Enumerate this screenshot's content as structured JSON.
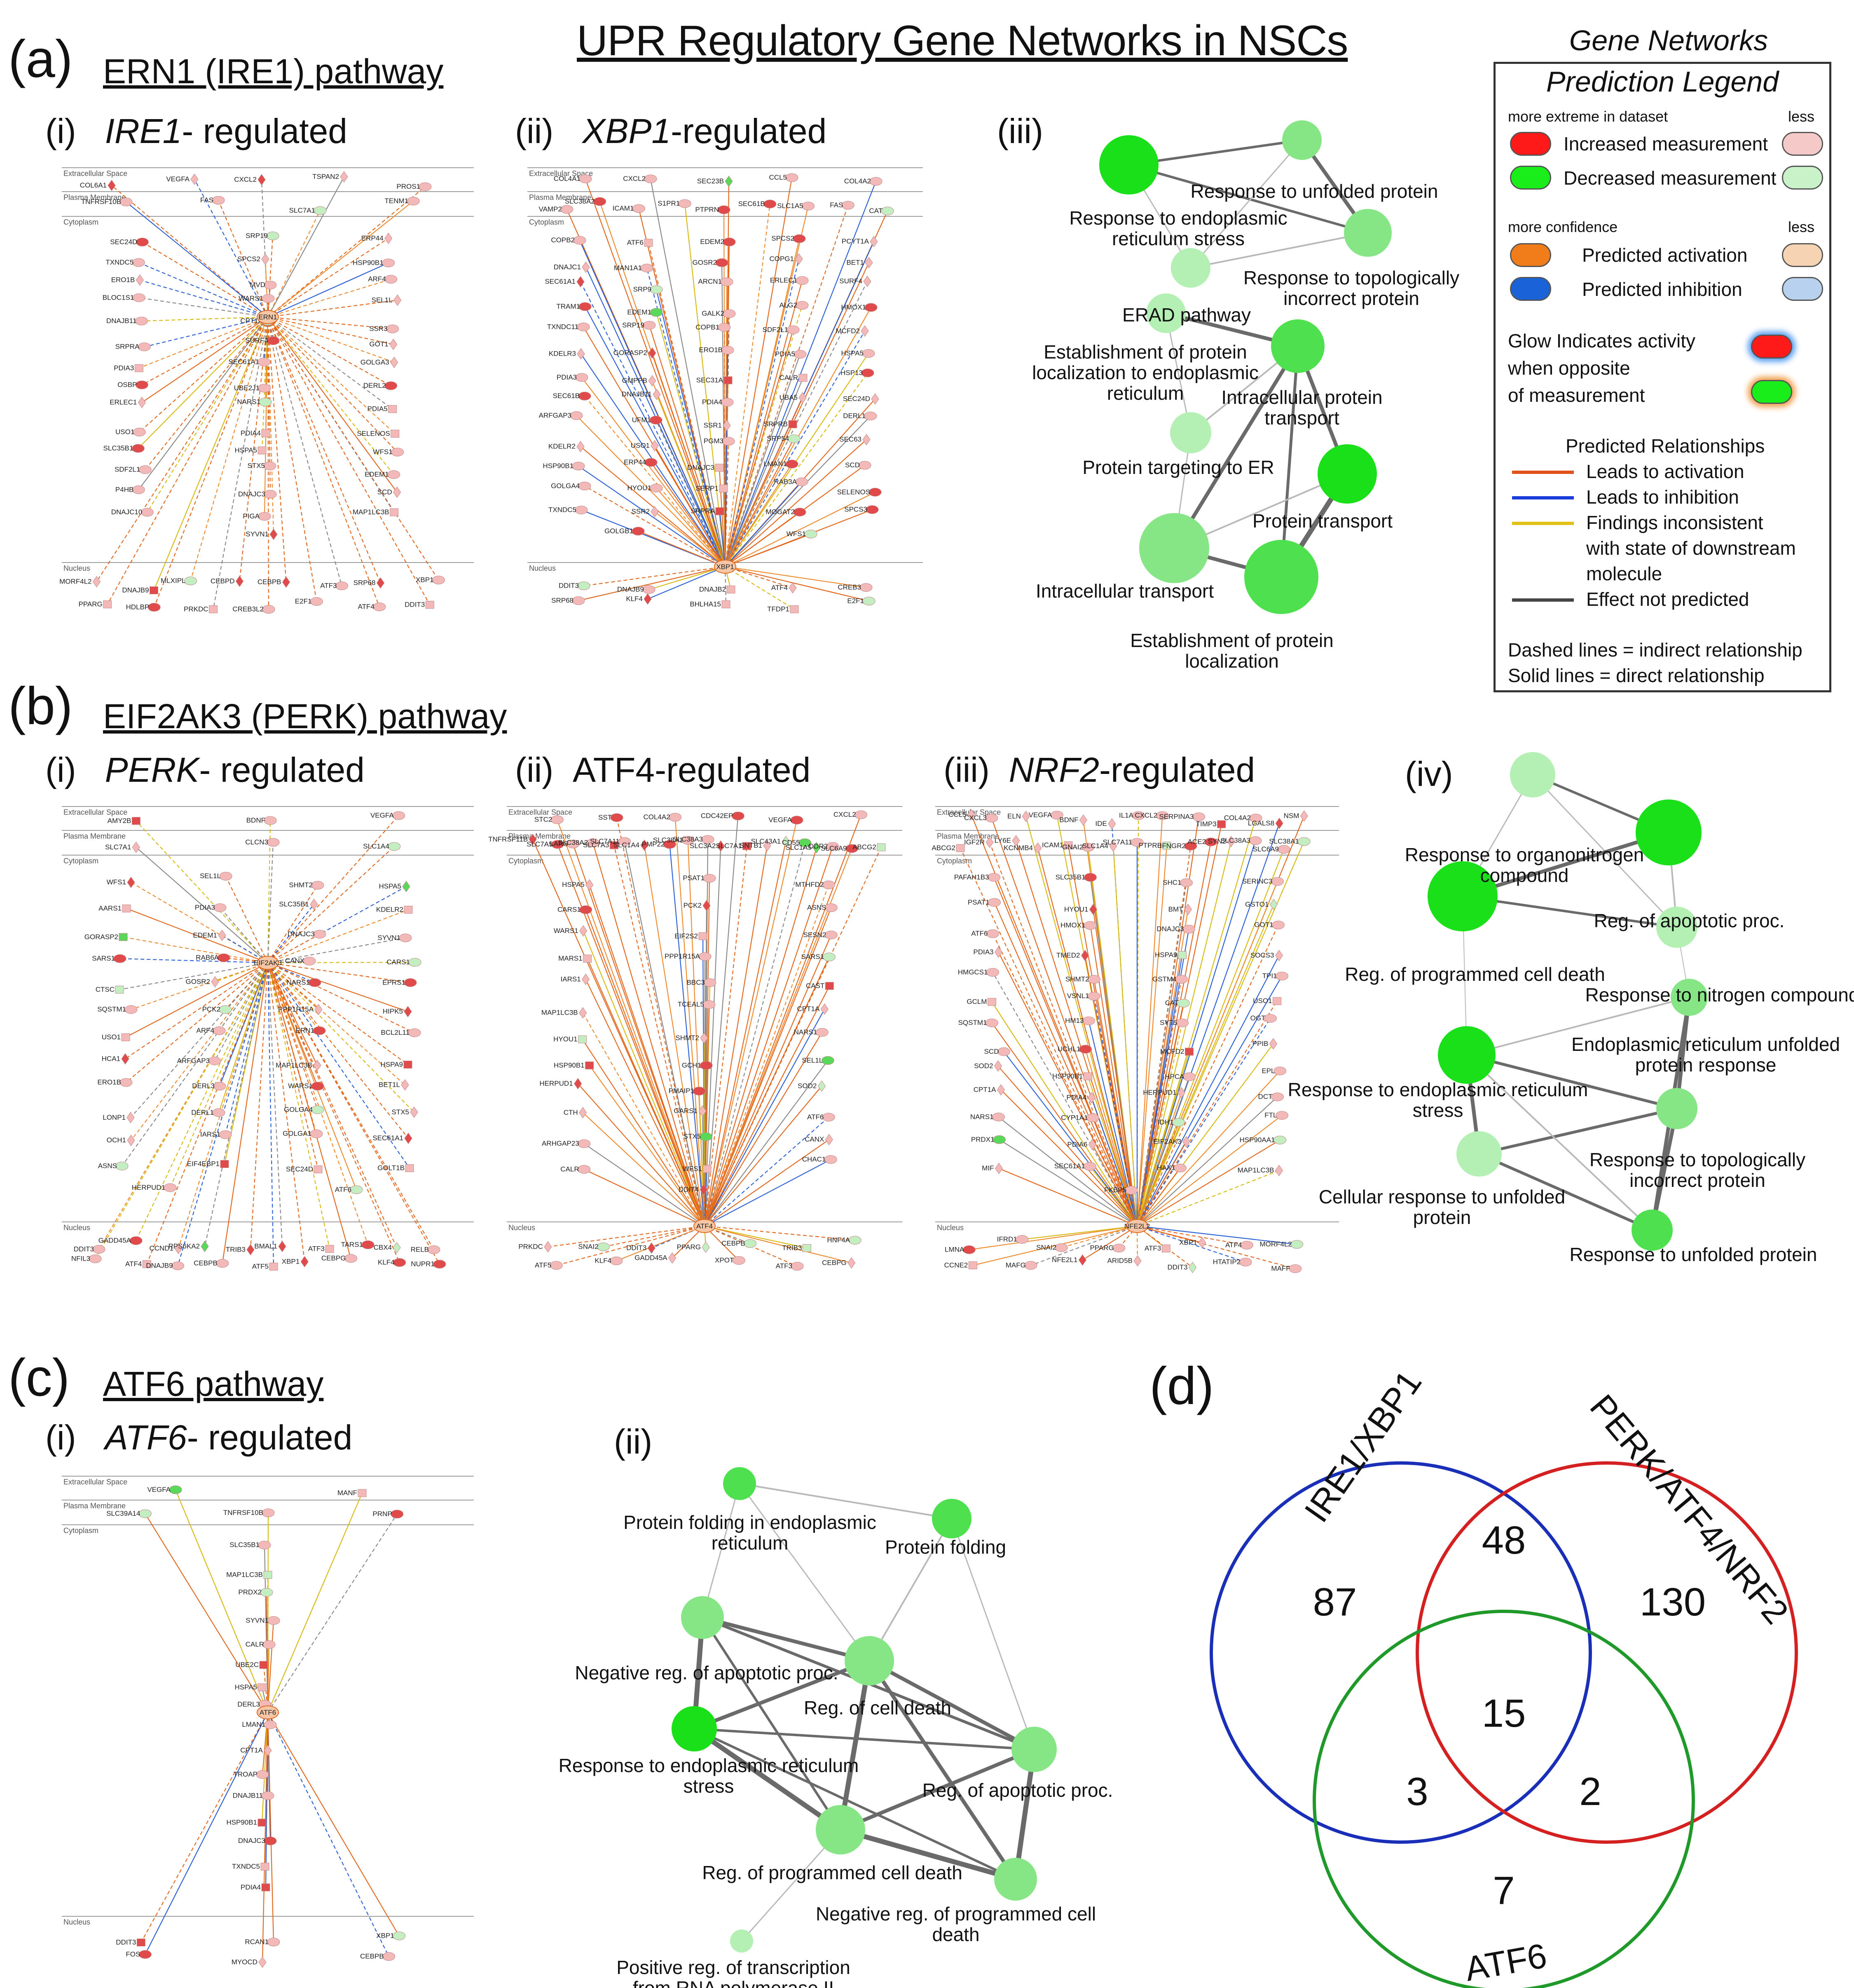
{
  "title": "UPR Regulatory Gene Networks in NSCs",
  "panels": {
    "a": {
      "letter": "(a)",
      "title": "ERN1 (IRE1) pathway",
      "i": {
        "num": "(i)",
        "label_italic": "IRE1",
        "label_rest": "- regulated"
      },
      "ii": {
        "num": "(ii)",
        "label_italic": "XBP1",
        "label_rest": "-regulated"
      },
      "iii": {
        "num": "(iii)"
      }
    },
    "b": {
      "letter": "(b)",
      "title": "EIF2AK3 (PERK) pathway",
      "i": {
        "num": "(i)",
        "label_italic": "PERK",
        "label_rest": "- regulated"
      },
      "ii": {
        "num": "(ii)",
        "label": "ATF4-regulated"
      },
      "iii": {
        "num": "(iii)",
        "label_italic": "NRF2",
        "label_rest": "-regulated"
      },
      "iv": {
        "num": "(iv)"
      }
    },
    "c": {
      "letter": "(c)",
      "title": "ATF6 pathway",
      "i": {
        "num": "(i)",
        "label_italic": "ATF6",
        "label_rest": "- regulated"
      },
      "ii": {
        "num": "(ii)"
      }
    },
    "d": {
      "letter": "(d)"
    }
  },
  "legend": {
    "heading1": "Gene Networks",
    "heading2": "Prediction Legend",
    "more_extreme": "more extreme in dataset",
    "less": "less",
    "increased": "Increased measurement",
    "decreased": "Decreased measurement",
    "more_confidence": "more confidence",
    "predicted_activation": "Predicted activation",
    "predicted_inhibition": "Predicted inhibition",
    "glow1": "Glow Indicates activity",
    "glow2": "when opposite",
    "glow3": "of measurement",
    "relationships_heading": "Predicted Relationships",
    "leads_activation": "Leads to activation",
    "leads_inhibition": "Leads to inhibition",
    "findings1": "Findings inconsistent",
    "findings2": "with state of downstream",
    "findings3": "molecule",
    "effect_not_predicted": "Effect not predicted",
    "dashed": "Dashed lines = indirect relationship",
    "solid": "Solid lines = direct relationship",
    "colors": {
      "increased": "#ff1a1a",
      "increased_less": "#f6c9c9",
      "decreased": "#1aee1a",
      "decreased_less": "#c9f2c9",
      "activation": "#f07c1a",
      "activation_less": "#f6d3b3",
      "inhibition": "#1a62d8",
      "inhibition_less": "#b8d1ee",
      "rel_activation": "#e0521a",
      "rel_inhibition": "#1a3cd8",
      "rel_inconsistent": "#e0c21a",
      "rel_none": "#444444"
    }
  },
  "locations": {
    "extracellular": "Extracellular Space",
    "plasma": "Plasma Membrane",
    "cytoplasm": "Cytoplasm",
    "nucleus": "Nucleus"
  },
  "networks": {
    "ire1": {
      "hub": "ERN1",
      "extracellular": [
        "COL6A1",
        "VEGFA",
        "CXCL2",
        "TSPAN2",
        "PROS1"
      ],
      "plasma": [
        "TNFRSF10B",
        "FAS",
        "SLC7A1",
        "TENM1"
      ],
      "cytoplasm": [
        "SEC24D",
        "SRP19",
        "ERP44",
        "TXNDC5",
        "SPCS2",
        "HSP90B1",
        "ERO1B",
        "MVD",
        "ARF4",
        "BLOC1S1",
        "WARS1",
        "SEL1L",
        "DNAJB11",
        "CPT1A",
        "SSR3",
        "SRPRA",
        "SURF4",
        "GOT1",
        "PDIA3",
        "SEC61A1",
        "GOLGA3",
        "OSBP",
        "UBE2J1",
        "DERL2",
        "ERLEC1",
        "NARS1",
        "PDIA5",
        "USO1",
        "PDIA4",
        "SELENOS",
        "SLC35B1",
        "HSPA5",
        "WFS1",
        "SDF2L1",
        "STX5",
        "EDEM1",
        "P4HB",
        "DNAJC3",
        "SCD",
        "DNAJC10",
        "PIGA",
        "MAP1LC3B",
        "SYVN1"
      ],
      "nucleus": [
        "MORF4L2",
        "DNAJB9",
        "MLXIPL",
        "CEBPD",
        "CEBPB",
        "ATF3",
        "SRP68",
        "XBP1",
        "PPARG",
        "HDLBP",
        "PRKDC",
        "CREB3L2",
        "E2F1",
        "ATF4",
        "DDIT3"
      ]
    },
    "xbp1": {
      "hub": "XBP1",
      "extracellular": [
        "COL4A1",
        "CXCL2",
        "SEC23B",
        "CCL5",
        "COL4A2"
      ],
      "plasma": [
        "VAMP2",
        "SLC38A2",
        "ICAM1",
        "S1PR1",
        "PTPRN",
        "SEC61B",
        "SLC1A5",
        "FAS",
        "CAT"
      ],
      "cytoplasm": [
        "COPB2",
        "ATF6",
        "EDEM2",
        "SPCS2",
        "PCYT1A",
        "DNAJC1",
        "MAN1A1",
        "GOSR2",
        "COPG1",
        "BET1",
        "SEC61A1",
        "SRP9",
        "ARCN1",
        "ERLEC1",
        "SURF4",
        "TRAM1",
        "EDEM1",
        "GALK2",
        "ALG2",
        "HMOX1",
        "TXNDC11",
        "SRP19",
        "COPB1",
        "SDF2L1",
        "MCFD2",
        "KDELR3",
        "GORASP2",
        "ERO1B",
        "PDIA5",
        "HSPA5",
        "PDIA3",
        "GMPPB",
        "SEC31A",
        "CALR",
        "HSP13",
        "SEC61B",
        "DNAJB11",
        "PDIA4",
        "UBA5",
        "SEC24D",
        "ARFGAP3",
        "UFM1",
        "SSR1",
        "SRPRB",
        "DERL1",
        "KDELR2",
        "USO1",
        "PGM3",
        "SRP54",
        "SEC63",
        "HSP90B1",
        "ERP44",
        "DNAJC3",
        "LMAN1",
        "SCD",
        "GOLGA4",
        "HYOU1",
        "SERP1",
        "RAB3A",
        "SELENOS",
        "TXNDC5",
        "SSR2",
        "SRPRA",
        "MOGAT2",
        "SPCS3",
        "GOLGB1",
        "WFS1"
      ],
      "nucleus": [
        "DDIT3",
        "DNAJB9",
        "DNAJB2",
        "ATF4",
        "CREB3",
        "SRP68",
        "KLF4",
        "BHLHA15",
        "TFDP1",
        "E2F1"
      ]
    },
    "perk": {
      "hub": "EIF2AK3",
      "extracellular": [
        "AMY2B",
        "BDNF",
        "VEGFA"
      ],
      "plasma": [
        "SLC7A1",
        "CLCN3",
        "SLC1A4"
      ],
      "cytoplasm": [
        "WFS1",
        "SEL1L",
        "SHMT2",
        "HSPA5",
        "AARS1",
        "PDIA3",
        "SLC35B1",
        "KDELR2",
        "GORASP2",
        "EDEM1",
        "DNAJC3",
        "SYVN1",
        "SARS1",
        "RAB6A",
        "CANX",
        "CARS1",
        "CTSC",
        "GOSR2",
        "NARS1",
        "EPRS1",
        "SQSTM1",
        "PCK2",
        "PPP1R15A",
        "HIPK5",
        "USO1",
        "ARF4",
        "ERN1",
        "BCL2L11",
        "HCA1",
        "ARFGAP3",
        "MAP1LC3B",
        "HSPA9",
        "ERO1B",
        "DERL3",
        "WARS1",
        "BET1L",
        "LONP1",
        "DERL1",
        "GOLGA4",
        "STX5",
        "OCH1",
        "IARS1",
        "GOLGA1",
        "SEC61A1",
        "ASNS",
        "EIF4EBP1",
        "SEC24D",
        "GOLT1B",
        "HERPUD1",
        "ATF6"
      ],
      "nucleus": [
        "DDIT3",
        "GADD45A",
        "CCND1",
        "RPS6KA2",
        "TRIB3",
        "BMAL1",
        "ATF3",
        "TARS1",
        "CBX4",
        "RELB",
        "NFIL3",
        "ATF4",
        "DNAJB9",
        "CEBPB",
        "ATF5",
        "XBP1",
        "CEBPG",
        "KLF4",
        "NUPR1"
      ]
    },
    "atf4": {
      "hub": "ATF4",
      "extracellular": [
        "STC2",
        "SST",
        "COL4A2",
        "CDC42EP",
        "VEGFA",
        "CXCL2"
      ],
      "plasma": [
        "TNFRSF11B",
        "SLC7A5",
        "LARS",
        "SLC38A2",
        "SLC7A3",
        "SLC7A11",
        "SLC1A4",
        "PMP22",
        "SLC38A1",
        "SLC38A3",
        "SLC3A2",
        "SLC7A1",
        "SNTB1",
        "SLC43A1",
        "CD55",
        "SLC1A5",
        "DDR2",
        "SLC6A9",
        "ABCG2"
      ],
      "cytoplasm": [
        "HSPA5",
        "PSAT1",
        "MTHFD2",
        "CARS1",
        "PCK2",
        "ASNS",
        "WARS1",
        "EIF2S2",
        "SESN2",
        "MARS1",
        "PPP1R15A",
        "SARS1",
        "IARS1",
        "BBC3",
        "CAST",
        "MAP1LC3B",
        "TCEAL5",
        "CPT1A",
        "HYOU1",
        "SHMT2",
        "NARS1",
        "HSP90B1",
        "GCH1",
        "SEL1L",
        "HERPUD1",
        "PMAIP1",
        "SOD2",
        "CTH",
        "GARS1",
        "ATF6",
        "ARHGAP23",
        "STX5",
        "CANX",
        "CALR",
        "WFS1",
        "CHAC1",
        "DDIT4"
      ],
      "nucleus": [
        "PRKDC",
        "SNAI2",
        "DDIT3",
        "PPARG",
        "CEBPB",
        "TRIB3",
        "HNF4A",
        "ATF5",
        "KLF4",
        "GADD45A",
        "XPOT",
        "ATF3",
        "CEBPG"
      ]
    },
    "nrf2": {
      "hub": "NFE2L2",
      "extracellular": [
        "CCL5",
        "CXCL3",
        "ELN",
        "VEGFA",
        "BDNF",
        "IDE",
        "IL1A",
        "CXCL2",
        "SERPINA3",
        "TIMP3",
        "COL4A2",
        "LGALS8",
        "NSM"
      ],
      "plasma": [
        "ABCG2",
        "IGF2R",
        "LY6E",
        "KCNMB4",
        "ICAM1",
        "GNAI2",
        "SLC1A4",
        "SLC7A11",
        "PTPRB",
        "IFNGR2",
        "ACE2",
        "SYN2",
        "SLC38A3",
        "SLC6A9",
        "SLC38A1"
      ],
      "cytoplasm": [
        "PAFAH1B3",
        "SLC35B1",
        "SHC1",
        "SERINC3",
        "PSAT1",
        "HYOU1",
        "BMT",
        "GSTO1",
        "ATF6",
        "HMOX1",
        "DNAJC3",
        "GOT1",
        "PDIA3",
        "TMED2",
        "HSPA9",
        "SOCS3",
        "HMGCS1",
        "SHMT2",
        "GSTM4",
        "TPI1",
        "GCLM",
        "VSNL1",
        "CAT",
        "USO1",
        "SQSTM1",
        "HM13",
        "SYT5",
        "OGT",
        "SCD",
        "UCHL1",
        "MCFD2",
        "PPIB",
        "SOD2",
        "HSP90B1",
        "HPCA",
        "EPL",
        "CPT1A",
        "PDIA4",
        "HERPUD1",
        "DCT",
        "NARS1",
        "CYP1A1",
        "IDH1",
        "FTL",
        "PRDX1",
        "PDIA6",
        "EIF2AK3",
        "HSP90AA1",
        "MIF",
        "SEC61A1",
        "HAX1",
        "MAP1LC3B",
        "FKBP5"
      ],
      "nucleus": [
        "LMNA",
        "IFRD1",
        "SNAI2",
        "PPARG",
        "ATF3",
        "XBP1",
        "ATF4",
        "MORF4L2",
        "CCNE2",
        "MAFG",
        "NFE2L1",
        "ARID5B",
        "DDIT3",
        "HTATIP2",
        "MAFF"
      ]
    },
    "atf6": {
      "hub": "ATF6",
      "extracellular": [
        "VEGFA",
        "MANF"
      ],
      "plasma": [
        "SLC39A14",
        "TNFRSF10B",
        "PRNP"
      ],
      "cytoplasm": [
        "SLC35B1",
        "MAP1LC3B",
        "PRDX2",
        "SYVN1",
        "CALR",
        "UBE2C",
        "HSPA5",
        "DERL3",
        "LMAN1",
        "CPT1A",
        "TROAP",
        "DNAJB11",
        "HSP90B1",
        "DNAJC3",
        "TXNDC5",
        "PDIA4"
      ],
      "nucleus": [
        "DDIT3",
        "RCAN1",
        "XBP1",
        "FOS",
        "MYOCD",
        "CEBPB"
      ]
    }
  },
  "go_networks": {
    "a_iii": {
      "labels": [
        "Response to unfolded protein",
        "Response to endoplasmic reticulum stress",
        "Response to topologically incorrect protein",
        "ERAD pathway",
        "Establishment of protein localization to endoplasmic reticulum",
        "Intracellular protein transport",
        "Protein targeting to ER",
        "Protein transport",
        "Intracellular transport",
        "Establishment of protein localization"
      ]
    },
    "b_iv": {
      "labels": [
        "Response to organonitrogen compound",
        "Reg. of apoptotic proc.",
        "Reg. of programmed cell death",
        "Response to nitrogen compound",
        "Endoplasmic reticulum unfolded protein response",
        "Response to endoplasmic reticulum stress",
        "Response to topologically incorrect protein",
        "Cellular response to unfolded protein",
        "Response to unfolded protein"
      ]
    },
    "c_ii": {
      "labels": [
        "Protein folding in endoplasmic reticulum",
        "Protein folding",
        "Negative reg. of apoptotic proc.",
        "Reg. of cell death",
        "Reg. of apoptotic proc.",
        "Response to endoplasmic reticulum stress",
        "Reg. of programmed cell death",
        "Negative reg. of programmed cell death",
        "Positive reg. of transcription from RNA polymerase II promoter in res"
      ]
    }
  },
  "venn": {
    "sets": [
      "IRE1/XBP1",
      "PERK/ATF4/NRF2",
      "ATF6"
    ],
    "counts": {
      "ire1_only": "87",
      "ire1_perk": "48",
      "perk_only": "130",
      "all_three": "15",
      "ire1_atf6": "3",
      "perk_atf6": "2",
      "atf6_only": "7"
    },
    "colors": {
      "ire1": "#1a2fb8",
      "perk": "#d42020",
      "atf6": "#1f9a2a"
    }
  }
}
